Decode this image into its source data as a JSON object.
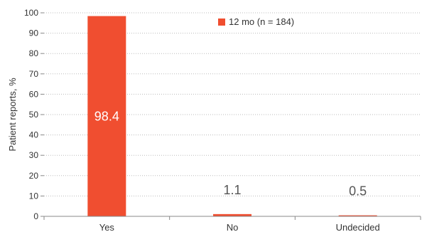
{
  "chart_data": {
    "type": "bar",
    "categories": [
      "Yes",
      "No",
      "Undecided"
    ],
    "series": [
      {
        "name": "12 mo (n = 184)",
        "values": [
          98.4,
          1.1,
          0.5
        ]
      }
    ],
    "data_labels": [
      "98.4",
      "1.1",
      "0.5"
    ],
    "ylabel": "Patient reports, %",
    "xlabel": "",
    "ylim": [
      0,
      100
    ],
    "yticks": [
      "0",
      "10",
      "20",
      "30",
      "40",
      "50",
      "60",
      "70",
      "80",
      "90",
      "100"
    ],
    "grid": true,
    "legend_position": "top-right",
    "colors": {
      "bar": "#f04e30",
      "grid": "#bbbbbb",
      "axis": "#888888",
      "text": "#333333",
      "bar_label_inside": "#ffffff",
      "bar_label_outside": "#555555"
    }
  }
}
